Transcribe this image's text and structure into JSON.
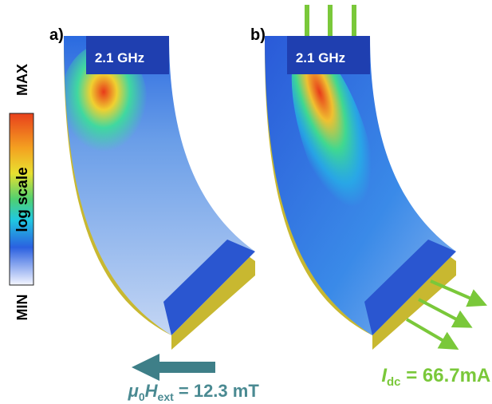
{
  "panels": [
    {
      "label": "a)",
      "frequency": "2.1 GHz"
    },
    {
      "label": "b)",
      "frequency": "2.1 GHz"
    }
  ],
  "colorbar": {
    "max": "MAX",
    "min": "MIN",
    "title": "log scale"
  },
  "field": {
    "symbol": "μ",
    "symbol_sub": "0",
    "quantity": "H",
    "quantity_sub": "ext",
    "rest": " = 12.3 mT"
  },
  "current": {
    "symbol": "I",
    "symbol_sub": "dc",
    "rest": " = 66.7mA"
  }
}
